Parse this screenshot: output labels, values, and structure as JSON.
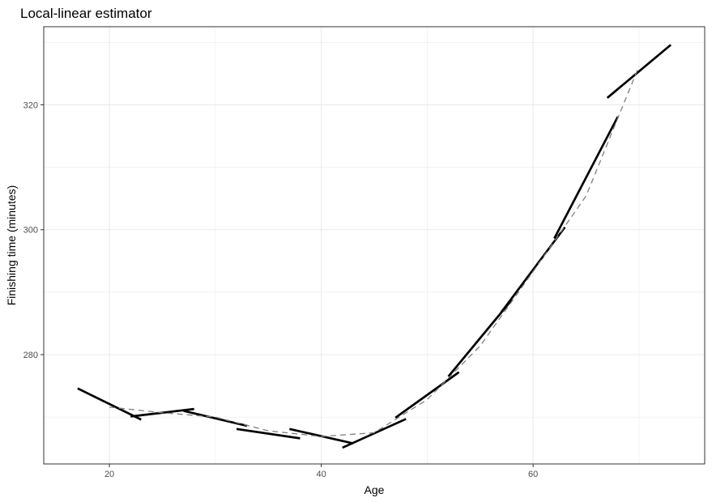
{
  "chart_data": {
    "type": "line",
    "title": "Local-linear estimator",
    "xlabel": "Age",
    "ylabel": "Finishing time (minutes)",
    "xlim": [
      13.8,
      76.2
    ],
    "ylim": [
      262.5,
      332.5
    ],
    "x_ticks": [
      20,
      40,
      60
    ],
    "y_ticks": [
      280,
      300,
      320
    ],
    "x_minor_grid": [
      30,
      50,
      70
    ],
    "y_minor_grid": [
      270,
      290,
      310,
      330
    ],
    "grid": true,
    "legend": "none",
    "colors": {
      "local_fit": "#000000",
      "reference": "#7f7f7f",
      "grid": "#ebebeb",
      "frame": "#333333"
    },
    "series": [
      {
        "style": "solid",
        "segments": [
          {
            "x": [
              17,
              23
            ],
            "y": [
              274.6,
              269.6
            ]
          },
          {
            "x": [
              22,
              28
            ],
            "y": [
              270.1,
              271.3
            ]
          },
          {
            "x": [
              27,
              33
            ],
            "y": [
              271.0,
              268.6
            ]
          },
          {
            "x": [
              32,
              38
            ],
            "y": [
              268.1,
              266.6
            ]
          },
          {
            "x": [
              37,
              43
            ],
            "y": [
              268.1,
              265.8
            ]
          },
          {
            "x": [
              42,
              48
            ],
            "y": [
              265.1,
              269.7
            ]
          },
          {
            "x": [
              47,
              53
            ],
            "y": [
              269.9,
              277.2
            ]
          },
          {
            "x": [
              52,
              58
            ],
            "y": [
              276.5,
              288.8
            ]
          },
          {
            "x": [
              57,
              63
            ],
            "y": [
              286.8,
              300.4
            ]
          },
          {
            "x": [
              62,
              68
            ],
            "y": [
              298.6,
              318.1
            ]
          },
          {
            "x": [
              67,
              73
            ],
            "y": [
              321.1,
              329.6
            ]
          }
        ]
      },
      {
        "style": "dashed",
        "x": [
          20,
          25,
          30,
          35,
          40,
          45,
          50,
          55,
          60,
          65,
          70
        ],
        "y": [
          271.6,
          270.7,
          270.0,
          267.8,
          266.9,
          267.5,
          272.8,
          281.4,
          293.3,
          305.4,
          326.2
        ]
      }
    ]
  }
}
